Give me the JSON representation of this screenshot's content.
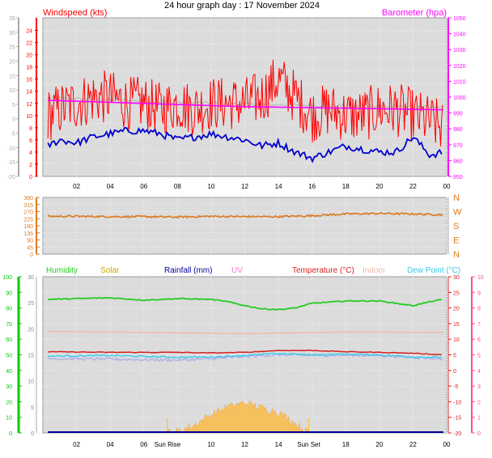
{
  "title": "24 hour graph day : 17 November 2024",
  "colors": {
    "windspeed": "#ff0000",
    "wind_avg": "#0000cc",
    "barometer": "#ff00ff",
    "baro_trace": "#bbbbbb",
    "direction": "#d97a20",
    "humidity": "#22cc22",
    "solar": "#ffb833",
    "solar_label": "#c8a800",
    "rainfall": "#000099",
    "uv": "#e87ecf",
    "temperature": "#d42020",
    "indoor": "#f2b8a8",
    "dew_point": "#33ccee",
    "dew_trace": "#b0a8e8",
    "left_axis_green": "#00cc00",
    "right_axis_pink": "#ff4d88"
  },
  "chart_data": [
    {
      "type": "line",
      "panel": "wind-barometer",
      "x_ticks": [
        "02",
        "04",
        "06",
        "08",
        "10",
        "12",
        "14",
        "16",
        "18",
        "20",
        "22",
        "00"
      ],
      "labels": {
        "left": "Windspeed (kts)",
        "right": "Barometer (hpa)"
      },
      "left_ticks": [
        24,
        22,
        20,
        18,
        16,
        14,
        12,
        10,
        8,
        6,
        4,
        2,
        0
      ],
      "left_outer_ticks": [
        35,
        30,
        25,
        20,
        15,
        10,
        5,
        0,
        -5,
        -10,
        -15,
        -20
      ],
      "right_ticks": [
        1050,
        1040,
        1030,
        1020,
        1010,
        1000,
        990,
        980,
        970,
        960,
        950
      ],
      "ylim_left": [
        0,
        25
      ],
      "ylim_right": [
        950,
        1050
      ],
      "series": [
        {
          "key": "gust",
          "x": [
            0.3,
            1,
            2,
            3,
            4,
            5,
            6,
            7,
            8,
            9,
            10,
            11,
            12,
            13,
            14,
            15,
            16,
            17,
            18,
            19,
            20,
            21,
            22,
            23,
            23.8
          ],
          "values": [
            10,
            11,
            12,
            13,
            13,
            12,
            12,
            11,
            12,
            11,
            12,
            12,
            12,
            13,
            16,
            13,
            10,
            11,
            10,
            10,
            11,
            11,
            10,
            9,
            8
          ]
        },
        {
          "key": "average",
          "x": [
            0.3,
            1,
            2,
            3,
            4,
            5,
            6,
            7,
            8,
            9,
            10,
            11,
            12,
            13,
            14,
            15,
            16,
            17,
            18,
            19,
            20,
            21,
            22,
            23,
            23.8
          ],
          "values": [
            5,
            6,
            5.5,
            6.5,
            7,
            7.5,
            7.5,
            7,
            6,
            6.5,
            7,
            6.5,
            6,
            5,
            5.5,
            4,
            3,
            4,
            5,
            4.5,
            4,
            4,
            6.5,
            3.5,
            4
          ]
        },
        {
          "key": "barometer",
          "x": [
            0.3,
            6,
            12,
            18,
            23.8
          ],
          "values": [
            998,
            996,
            994,
            993,
            992
          ]
        }
      ]
    },
    {
      "type": "scatter",
      "panel": "wind-direction",
      "left_ticks": [
        360,
        315,
        270,
        225,
        180,
        135,
        90,
        45,
        0
      ],
      "compass": [
        "N",
        "W",
        "S",
        "E",
        "N"
      ],
      "ylim": [
        0,
        360
      ],
      "x": [
        0.3,
        2,
        4,
        6,
        8,
        10,
        12,
        14,
        16,
        18,
        20,
        22,
        23.8
      ],
      "values": [
        240,
        240,
        238,
        238,
        235,
        240,
        238,
        238,
        244,
        255,
        258,
        255,
        250
      ]
    },
    {
      "type": "line",
      "panel": "temperature-humidity",
      "x_ticks": [
        "02",
        "04",
        "06",
        "10",
        "12",
        "14",
        "18",
        "20",
        "22",
        "00"
      ],
      "sun_rise_label": "Sun Rise",
      "sun_set_label": "Sun Set",
      "sun_rise_x": 7.4,
      "sun_set_x": 15.8,
      "legend": [
        "Humidity",
        "Solar",
        "Rainfall (mm)",
        "UV",
        "Temperature (°C)",
        "Indoor",
        "Dew Point (°C)"
      ],
      "left_ticks": [
        30,
        25,
        20,
        15,
        10,
        5,
        0
      ],
      "left_outer_ticks": [
        100,
        90,
        80,
        70,
        60,
        50,
        40,
        30,
        20,
        10,
        0
      ],
      "right_ticks": [
        30,
        25,
        20,
        15,
        10,
        5,
        0,
        -5,
        -10,
        -15,
        -20
      ],
      "right_outer_ticks": [
        10,
        9,
        8,
        7,
        6,
        5,
        4,
        3,
        2,
        1,
        0
      ],
      "ylim_humidity": [
        0,
        100
      ],
      "ylim_temp": [
        -20,
        30
      ],
      "series": [
        {
          "key": "humidity",
          "x": [
            0.3,
            2,
            4,
            6,
            8,
            10,
            11,
            12,
            13,
            14,
            15,
            16,
            18,
            20,
            22,
            23,
            23.8
          ],
          "values": [
            85.5,
            86,
            86.5,
            85,
            86,
            85.5,
            84,
            81.5,
            79.5,
            79,
            80,
            83,
            84.5,
            84.5,
            81.5,
            84,
            85.5
          ]
        },
        {
          "key": "indoor",
          "x": [
            0.3,
            6,
            12,
            18,
            23.8
          ],
          "values": [
            12.5,
            12.2,
            11.8,
            12.3,
            12.2
          ]
        },
        {
          "key": "temperature",
          "x": [
            0.3,
            4,
            8,
            10,
            12,
            14,
            16,
            18,
            20,
            22,
            23.8
          ],
          "values": [
            6,
            5.8,
            5.8,
            5.6,
            5.8,
            6.4,
            6.4,
            6,
            5.8,
            5.5,
            5
          ]
        },
        {
          "key": "dew_point",
          "x": [
            0.3,
            4,
            8,
            10,
            12,
            14,
            16,
            18,
            20,
            22,
            23.8
          ],
          "values": [
            4.6,
            4.8,
            4.2,
            4.3,
            4.8,
            5.4,
            5.0,
            5.2,
            5.0,
            4.3,
            4.2
          ]
        },
        {
          "key": "dew_trace",
          "x": [
            0.3,
            4,
            8,
            10,
            12,
            14,
            16,
            18,
            20,
            22,
            23.8
          ],
          "values": [
            3.8,
            3.6,
            3.3,
            3.7,
            4.5,
            5.0,
            4.8,
            4.9,
            4.8,
            4.2,
            3.7
          ]
        },
        {
          "key": "solar",
          "x": [
            7.4,
            8,
            9,
            10,
            11,
            12,
            13,
            14,
            15,
            15.8
          ],
          "values": [
            0,
            0.3,
            1.5,
            3.5,
            5,
            5.8,
            4.8,
            4,
            1.8,
            0
          ]
        },
        {
          "key": "rainfall",
          "x": [
            0.3,
            23.8
          ],
          "values": [
            0,
            0
          ]
        }
      ]
    }
  ]
}
